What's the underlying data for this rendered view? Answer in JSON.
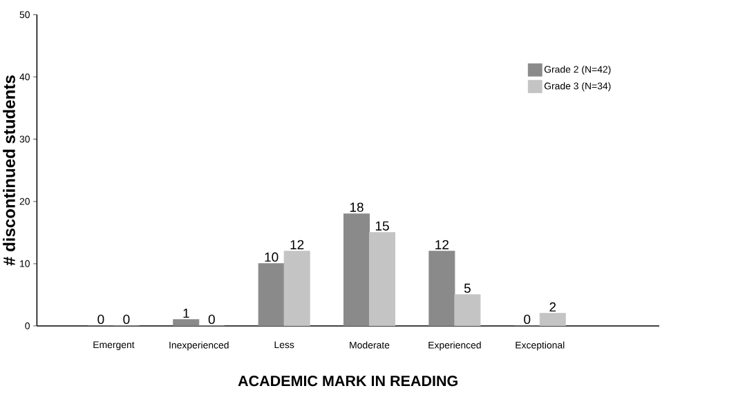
{
  "chart_data": {
    "type": "bar",
    "xlabel": "ACADEMIC MARK IN READING",
    "ylabel": "# discontinued students",
    "categories": [
      "Emergent",
      "Inexperienced",
      "Less",
      "Moderate",
      "Experienced",
      "Exceptional"
    ],
    "series": [
      {
        "name": "Grade 2 (N=42)",
        "color": "#8a8a8a",
        "values": [
          0,
          1,
          10,
          18,
          12,
          0
        ]
      },
      {
        "name": "Grade 3 (N=34)",
        "color": "#c4c4c4",
        "values": [
          0,
          0,
          12,
          15,
          5,
          2
        ]
      }
    ],
    "ylim": [
      0,
      50
    ],
    "yticks": [
      0,
      10,
      20,
      30,
      40,
      50
    ],
    "data_labels": true,
    "legend": "top right",
    "grid": false
  }
}
